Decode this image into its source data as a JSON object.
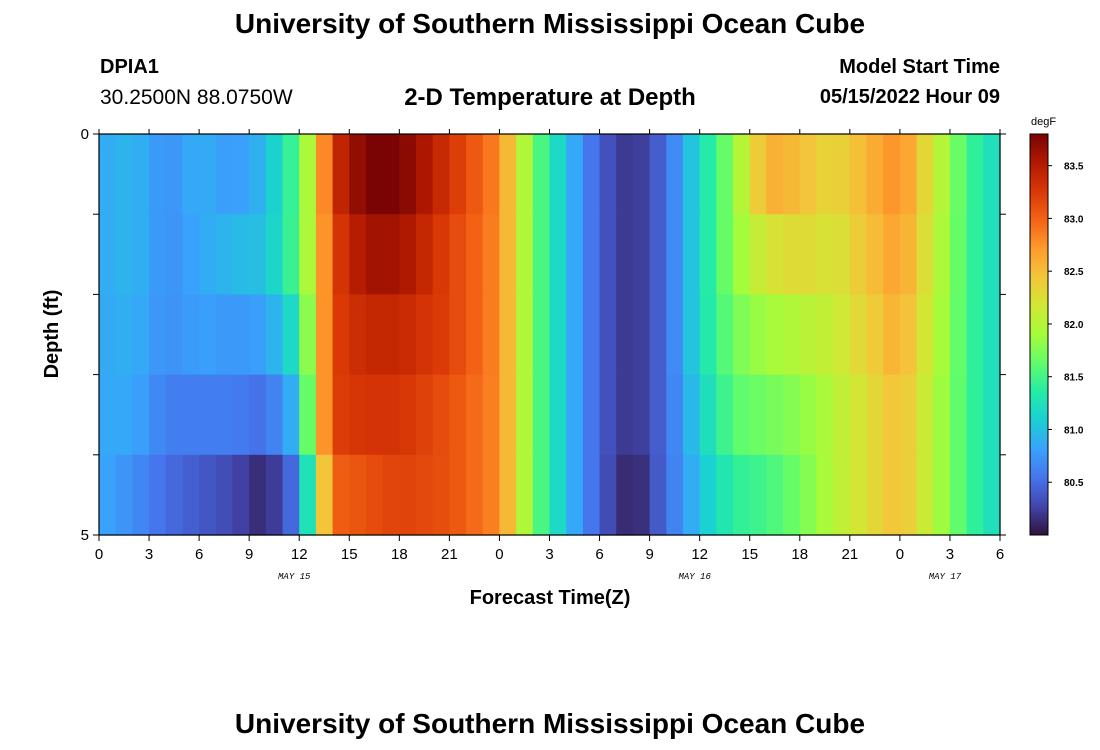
{
  "header": {
    "title": "University of Southern Mississippi Ocean Cube",
    "station": "DPIA1",
    "coordinates": "30.2500N  88.0750W",
    "subtitle": "2-D Temperature at Depth",
    "model_start_label": "Model Start Time",
    "model_start_value": "05/15/2022 Hour 09"
  },
  "footer": {
    "title": "University of Southern Mississippi Ocean Cube"
  },
  "chart_data": {
    "type": "heatmap",
    "title": "2-D Temperature at Depth",
    "xlabel": "Forecast Time(Z)",
    "ylabel": "Depth (ft)",
    "x_tick_labels": [
      "0",
      "3",
      "6",
      "9",
      "12",
      "15",
      "18",
      "21",
      "0",
      "3",
      "6",
      "9",
      "12",
      "15",
      "18",
      "21",
      "0",
      "3",
      "6"
    ],
    "day_labels": [
      {
        "label": "MAY 15",
        "tick_index": 4
      },
      {
        "label": "MAY 16",
        "tick_index": 12
      },
      {
        "label": "MAY 17",
        "tick_index": 17
      }
    ],
    "y_tick_labels": [
      "0",
      "5"
    ],
    "ylim": [
      0,
      5
    ],
    "x_range_hours": [
      0,
      54
    ],
    "depth_levels_ft": [
      0,
      1,
      2,
      3,
      4,
      5
    ],
    "colorbar": {
      "unit": "degF",
      "min": 80.0,
      "max": 83.8,
      "tick_labels": [
        "83.5",
        "83.0",
        "82.5",
        "82.0",
        "81.5",
        "81.0",
        "80.5"
      ],
      "tick_values": [
        83.5,
        83.0,
        82.5,
        82.0,
        81.5,
        81.0,
        80.5
      ],
      "colormap": [
        "#30123b",
        "#4145ab",
        "#4675ed",
        "#39a2fc",
        "#1bcfd4",
        "#24eca6",
        "#61fc6c",
        "#a4fc3b",
        "#d1e834",
        "#f3c63a",
        "#fe9b2d",
        "#f36315",
        "#d93806",
        "#b11901",
        "#7a0403"
      ]
    },
    "series": [
      {
        "name": "depth 0-1 ft",
        "hours": [
          0,
          2,
          4,
          6,
          8,
          10,
          12,
          13,
          14,
          16,
          18,
          21,
          24,
          26,
          28,
          30,
          32,
          34,
          36,
          38,
          40,
          42,
          44,
          48,
          52,
          54
        ],
        "values": [
          80.85,
          80.95,
          80.7,
          80.9,
          80.75,
          80.95,
          81.6,
          82.3,
          83.3,
          83.8,
          83.8,
          83.3,
          82.8,
          81.7,
          81.0,
          80.4,
          80.15,
          80.5,
          81.2,
          81.8,
          82.6,
          82.5,
          82.3,
          82.8,
          81.5,
          81.15
        ]
      },
      {
        "name": "depth 1-2 ft",
        "hours": [
          0,
          2,
          4,
          6,
          8,
          10,
          12,
          13,
          14,
          16,
          18,
          21,
          24,
          26,
          28,
          30,
          32,
          34,
          36,
          38,
          40,
          42,
          44,
          48,
          52,
          54
        ],
        "values": [
          80.85,
          80.95,
          80.7,
          80.85,
          80.95,
          81.0,
          81.6,
          82.3,
          83.2,
          83.6,
          83.6,
          83.2,
          82.8,
          81.7,
          81.0,
          80.4,
          80.15,
          80.5,
          81.2,
          81.8,
          82.2,
          82.3,
          82.2,
          82.7,
          81.5,
          81.15
        ]
      },
      {
        "name": "depth 2-3 ft",
        "hours": [
          0,
          2,
          4,
          6,
          8,
          10,
          12,
          13,
          14,
          16,
          18,
          21,
          24,
          26,
          28,
          30,
          32,
          34,
          36,
          38,
          40,
          42,
          44,
          48,
          52,
          54
        ],
        "values": [
          80.85,
          80.9,
          80.7,
          80.8,
          80.75,
          80.8,
          81.3,
          82.3,
          83.2,
          83.4,
          83.4,
          83.2,
          82.8,
          81.7,
          81.0,
          80.4,
          80.15,
          80.5,
          81.2,
          81.7,
          81.9,
          82.0,
          82.1,
          82.6,
          81.5,
          81.15
        ]
      },
      {
        "name": "depth 3-4 ft",
        "hours": [
          0,
          2,
          4,
          6,
          8,
          10,
          12,
          13,
          14,
          16,
          18,
          21,
          24,
          26,
          28,
          30,
          32,
          34,
          36,
          38,
          40,
          42,
          44,
          48,
          52,
          54
        ],
        "values": [
          80.85,
          80.85,
          80.6,
          80.6,
          80.6,
          80.5,
          81.0,
          82.3,
          83.2,
          83.3,
          83.3,
          83.1,
          82.8,
          81.7,
          81.0,
          80.4,
          80.15,
          80.5,
          81.1,
          81.6,
          81.7,
          81.8,
          82.0,
          82.5,
          81.5,
          81.15
        ]
      },
      {
        "name": "depth 4-5 ft",
        "hours": [
          0,
          2,
          4,
          6,
          8,
          10,
          12,
          13,
          14,
          16,
          18,
          21,
          24,
          26,
          28,
          30,
          32,
          34,
          36,
          38,
          40,
          42,
          44,
          48,
          52,
          54
        ],
        "values": [
          80.85,
          80.7,
          80.5,
          80.4,
          80.3,
          80.1,
          80.6,
          81.9,
          83.0,
          83.1,
          83.2,
          83.1,
          82.8,
          81.7,
          81.0,
          80.4,
          80.05,
          80.5,
          81.0,
          81.4,
          81.5,
          81.7,
          82.0,
          82.5,
          81.5,
          81.15
        ]
      }
    ]
  }
}
